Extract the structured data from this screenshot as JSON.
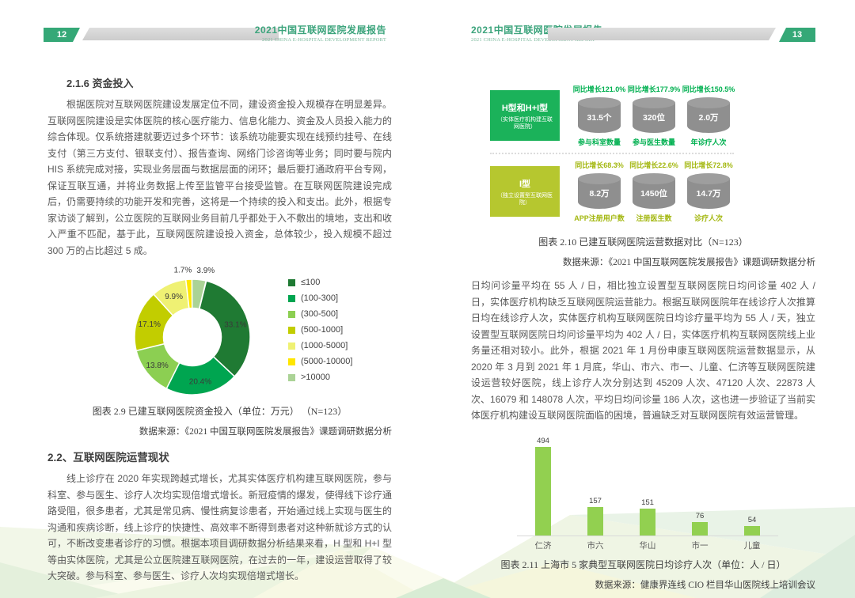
{
  "header": {
    "title_cn": "2021中国互联网医院发展报告",
    "title_en": "2021 CHINA E-HOSPITAL DEVELOPMENT REPORT",
    "left_page_number": "12",
    "right_page_number": "13"
  },
  "left_page": {
    "section_216": {
      "title": "2.1.6 资金投入",
      "paragraph": "根据医院对互联网医院建设发展定位不同，建设资金投入规模存在明显差异。互联网医院建设是实体医院的核心医疗能力、信息化能力、资金及人员投入能力的综合体现。仅系统搭建就要迈过多个环节：该系统功能要实现在线预约挂号、在线支付（第三方支付、银联支付）、报告查询、网络门诊咨询等业务；同时要与院内 HIS 系统完成对接，实现业务层面与数据层面的闭环；最后要打通政府平台专网，保证互联互通，并将业务数据上传至监管平台接受监管。在互联网医院建设完成后，仍需要持续的功能开发和完善，这将是一个持续的投入和支出。此外，根据专家访谈了解到，公立医院的互联网业务目前几乎都处于入不敷出的境地，支出和收入严重不匹配，基于此，互联网医院建设投入资金，总体较少，投入规模不超过 300 万的占比超过 5 成。"
    },
    "fig29": {
      "caption": "图表 2.9 已建互联网医院资金投入（单位：万元） （N=123）",
      "source": "数据来源：《2021 中国互联网医院发展报告》课题调研数据分析"
    },
    "section_22": {
      "title": "2.2、互联网医院运营现状",
      "paragraph": "线上诊疗在 2020 年实现跨越式增长，尤其实体医疗机构建互联网医院，参与科室、参与医生、诊疗人次均实现倍增式增长。新冠疫情的爆发，使得线下诊疗通路受阻，很多患者，尤其是常见病、慢性病复诊患者，开始通过线上实现与医生的沟通和疾病诊断，线上诊疗的快捷性、高效率不断得到患者对这种新就诊方式的认可，不断改变患者诊疗的习惯。根据本项目调研数据分析结果来看，H 型和 H+I 型等由实体医院，尤其是公立医院建互联网医院，在过去的一年，建设运营取得了较大突破。参与科室、参与医生、诊疗人次均实现倍增式增长。"
    }
  },
  "right_page": {
    "fig210": {
      "caption": "图表 2.10  已建互联网医院运营数据对比（N=123）",
      "source": "数据来源：《2021 中国互联网医院发展报告》课题调研数据分析"
    },
    "paragraph": "日均问诊量平均在 55 人 / 日，相比独立设置型互联网医院日均问诊量 402 人 / 日，实体医疗机构缺乏互联网医院运营能力。根据互联网医院年在线诊疗人次推算日均在线诊疗人次，实体医疗机构互联网医院日均诊疗量平均为 55 人 / 天，独立设置型互联网医院日均问诊量平均为 402 人 / 日，实体医疗机构互联网医院线上业务量还相对较小。此外，根据 2021 年 1 月份申康互联网医院运营数据显示，从 2020 年 3 月到 2021 年 1 月底，华山、市六、市一、儿童、仁济等互联网医院建设运营较好医院，线上诊疗人次分别达到 45209 人次、47120 人次、22873 人次、16079 和 148078 人次，平均日均问诊量 186 人次，这也进一步验证了当前实体医疗机构建设互联网医院面临的困境，普遍缺乏对互联网医院有效运营管理。",
    "fig211": {
      "caption": "图表 2.11  上海市 5 家典型互联网医院日均诊疗人次（单位：人 / 日）",
      "source": "数据来源：健康界连线 CIO 栏目华山医院线上培训会议"
    }
  },
  "chart_data": [
    {
      "id": "fig_2_9",
      "type": "pie",
      "title": "图表 2.9 已建互联网医院资金投入（单位：万元）（N=123）",
      "donut": true,
      "legend_position": "right",
      "categories": [
        "≤100",
        "(100-300]",
        "(300-500]",
        "(500-1000]",
        "(1000-5000]",
        "(5000-10000]",
        ">10000"
      ],
      "values": [
        33.1,
        20.4,
        13.8,
        17.1,
        9.9,
        1.7,
        3.9
      ],
      "colors": [
        "#1f7a33",
        "#00a550",
        "#8ccf52",
        "#c2cd00",
        "#eff173",
        "#ffe600",
        "#abd396"
      ],
      "start_angle_deg": 14,
      "label_suffix": "%"
    },
    {
      "id": "fig_2_10",
      "type": "table",
      "title": "图表 2.10 已建互联网医院运营数据对比（N=123）",
      "cylinder_color": "#8f8f8f",
      "rows": [
        {
          "group": "H型和H+I型",
          "group_sub": "（实体医疗机构建互联网医院）",
          "accent": "#1bb25a",
          "text_color": "#00b050",
          "metrics": [
            {
              "growth": "同比增长121.0%",
              "value": "31.5个",
              "label": "参与科室数量"
            },
            {
              "growth": "同比增长177.9%",
              "value": "320位",
              "label": "参与医生数量"
            },
            {
              "growth": "同比增长150.5%",
              "value": "2.0万",
              "label": "年诊疗人次"
            }
          ]
        },
        {
          "group": "I型",
          "group_sub": "（独立设置型互联网医院）",
          "accent": "#b6c72f",
          "text_color": "#a3b70f",
          "metrics": [
            {
              "growth": "同比增长68.3%",
              "value": "8.2万",
              "label": "APP注册用户数"
            },
            {
              "growth": "同比增长22.6%",
              "value": "1450位",
              "label": "注册医生数"
            },
            {
              "growth": "同比增长72.8%",
              "value": "14.7万",
              "label": "诊疗人次"
            }
          ]
        }
      ]
    },
    {
      "id": "fig_2_11",
      "type": "bar",
      "title": "图表 2.11 上海市 5 家典型互联网医院日均诊疗人次（单位：人 / 日）",
      "categories": [
        "仁济",
        "市六",
        "华山",
        "市一",
        "儿童"
      ],
      "values": [
        494,
        157,
        151,
        76,
        54
      ],
      "bar_color": "#92d050",
      "ylim": [
        0,
        520
      ],
      "grid": false
    }
  ],
  "colors": {
    "accent_green": "#35a877",
    "header_bar_gray": "#d6d6d6",
    "body_text": "#595959"
  }
}
